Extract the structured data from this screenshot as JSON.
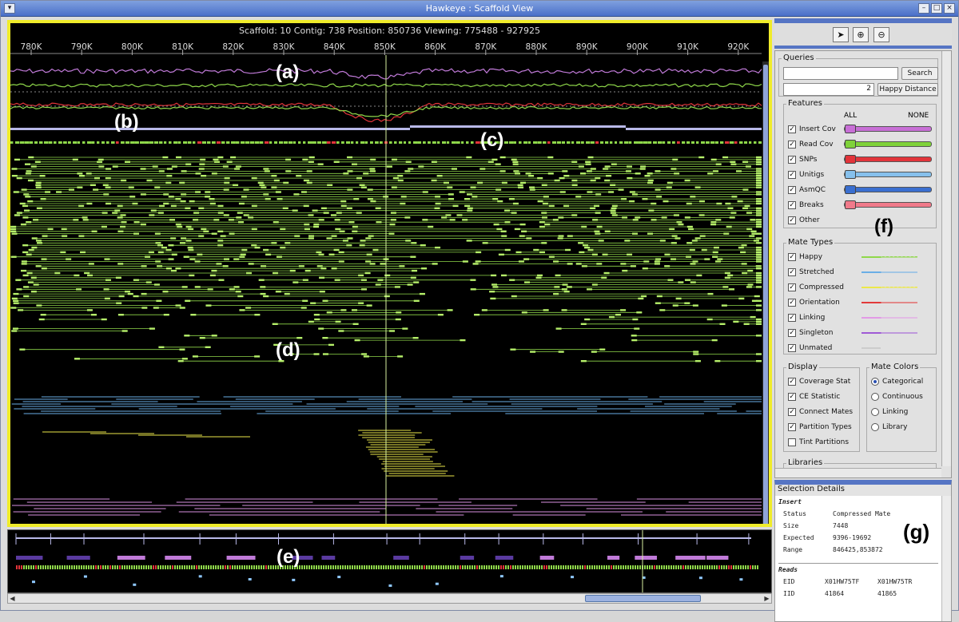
{
  "window": {
    "title": "Hawkeye : Scaffold View"
  },
  "main": {
    "header": "Scaffold: 10  Contig: 738  Position: 850736  Viewing: 775488 - 927925",
    "ticks": [
      "780K",
      "790K",
      "800K",
      "810K",
      "820K",
      "830K",
      "840K",
      "850K",
      "860K",
      "870K",
      "880K",
      "890K",
      "900K",
      "910K",
      "920K"
    ],
    "labels": {
      "a": "(a)",
      "b": "(b)",
      "c": "(c)",
      "d": "(d)"
    }
  },
  "overview": {
    "label": "(e)"
  },
  "toolbar": {
    "select_icon": "pointer-icon",
    "zoom_in_icon": "zoom-in-icon",
    "zoom_out_icon": "zoom-out-icon"
  },
  "queries": {
    "label": "Queries",
    "search_value": "",
    "search_button": "Search",
    "distance_value": "2",
    "distance_button": "Happy Distance"
  },
  "features": {
    "label": "Features",
    "all": "ALL",
    "none": "NONE",
    "items": [
      {
        "label": "Insert Cov",
        "checked": "✓",
        "color": "#c86fd6"
      },
      {
        "label": "Read Cov",
        "checked": "✓",
        "color": "#7fd23a"
      },
      {
        "label": "SNPs",
        "checked": "✓",
        "color": "#e2343a"
      },
      {
        "label": "Unitigs",
        "checked": "✓",
        "color": "#86c0ec"
      },
      {
        "label": "AsmQC",
        "checked": "✓",
        "color": "#3a6fd0"
      },
      {
        "label": "Breaks",
        "checked": "✓",
        "color": "#f07a8a"
      },
      {
        "label": "Other",
        "checked": "✓"
      }
    ],
    "panel_label": "(f)"
  },
  "mate_types": {
    "label": "Mate Types",
    "items": [
      {
        "label": "Happy",
        "checked": "✓",
        "color": "#8fd84a"
      },
      {
        "label": "Stretched",
        "checked": "✓",
        "color": "#6aaee6"
      },
      {
        "label": "Compressed",
        "checked": "✓",
        "color": "#ece84a"
      },
      {
        "label": "Orientation",
        "checked": "✓",
        "color": "#e23a3a"
      },
      {
        "label": "Linking",
        "checked": "✓",
        "color": "#e29ae6"
      },
      {
        "label": "Singleton",
        "checked": "✓",
        "color": "#a05ad6"
      },
      {
        "label": "Unmated",
        "checked": "✓",
        "color": "#cccccc"
      }
    ]
  },
  "display": {
    "label": "Display",
    "items": [
      {
        "label": "Coverage Stat",
        "checked": "✓"
      },
      {
        "label": "CE Statistic",
        "checked": "✓"
      },
      {
        "label": "Connect Mates",
        "checked": "✓"
      },
      {
        "label": "Partition Types",
        "checked": "✓"
      },
      {
        "label": "Tint Partitions",
        "checked": ""
      }
    ]
  },
  "mate_colors": {
    "label": "Mate Colors",
    "items": [
      {
        "label": "Categorical",
        "selected": true
      },
      {
        "label": "Continuous",
        "selected": false
      },
      {
        "label": "Linking",
        "selected": false
      },
      {
        "label": "Library",
        "selected": false
      }
    ]
  },
  "libraries": {
    "label": "Libraries"
  },
  "selection": {
    "title": "Selection Details",
    "insert_heading": "Insert",
    "rows": [
      {
        "k": "Status",
        "v": "Compressed Mate"
      },
      {
        "k": "Size",
        "v": "7448"
      },
      {
        "k": "Expected",
        "v": "9396-19692"
      },
      {
        "k": "Range",
        "v": "846425,853872"
      }
    ],
    "reads_heading": "Reads",
    "read_rows": [
      {
        "k": "EID",
        "v1": "X01HW75TF",
        "v2": "X01HW75TR"
      },
      {
        "k": "IID",
        "v1": "41864",
        "v2": "41865"
      }
    ],
    "panel_label": "(g)"
  }
}
